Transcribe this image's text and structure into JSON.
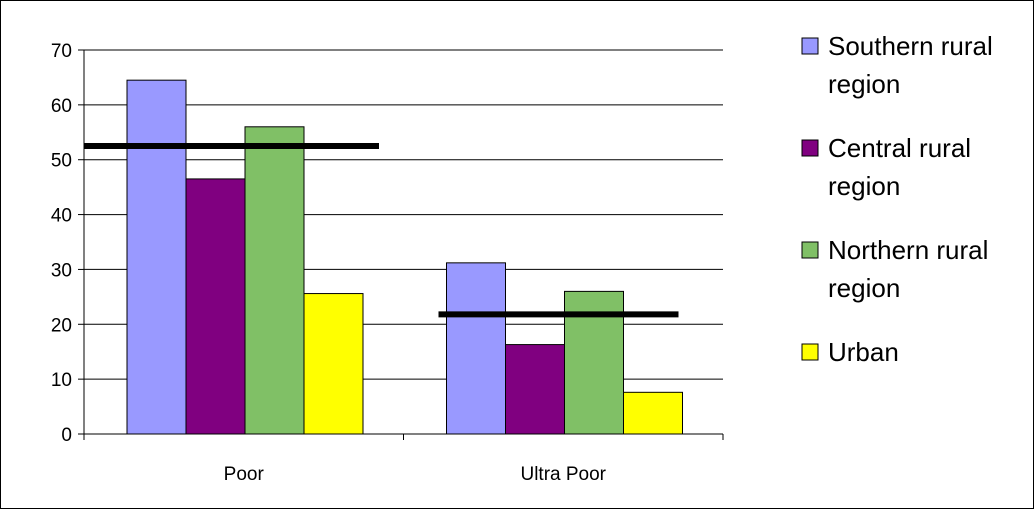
{
  "chart_data": {
    "type": "bar",
    "categories": [
      "Poor",
      "Ultra Poor"
    ],
    "series": [
      {
        "name": "Southern rural region",
        "color": "#9999ff",
        "values": [
          64.5,
          31.2
        ]
      },
      {
        "name": "Central rural region",
        "color": "#800080",
        "values": [
          46.5,
          16.3
        ]
      },
      {
        "name": "Northern rural region",
        "color": "#80c066",
        "values": [
          56.0,
          26.0
        ]
      },
      {
        "name": "Urban",
        "color": "#ffff00",
        "values": [
          25.6,
          7.6
        ]
      }
    ],
    "reference_lines": [
      52.5,
      21.8
    ],
    "yticks": [
      0,
      10,
      20,
      30,
      40,
      50,
      60,
      70
    ],
    "ylim": [
      0,
      70
    ],
    "grid": true,
    "legend_position": "right",
    "title": "",
    "xlabel": "",
    "ylabel": ""
  }
}
